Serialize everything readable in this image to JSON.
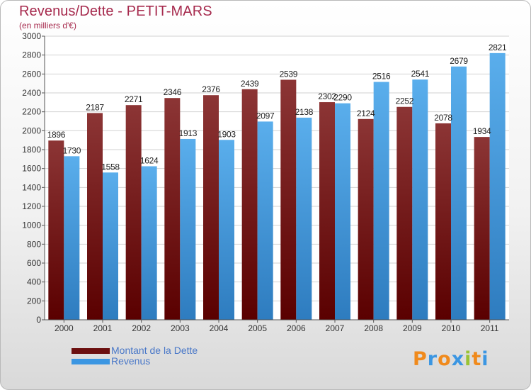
{
  "title": "Revenus/Dette - PETIT-MARS",
  "subtitle": "(en milliers d'€)",
  "colors": {
    "dette_top": "#8c3535",
    "dette_bottom": "#5a0000",
    "revenus_top": "#5aaeec",
    "revenus_bottom": "#2e7cbf",
    "swatch_dette": "#6b0f0f",
    "swatch_revenus": "#3b96e2",
    "title": "#a62a4d",
    "legend_text": "#4a78c8"
  },
  "legend": {
    "dette_label": "Montant de la Dette",
    "revenus_label": "Revenus"
  },
  "logo": {
    "text": "Proxiti",
    "letter_colors": [
      "#f08a1c",
      "#3b96e2",
      "#f08a1c",
      "#3b96e2",
      "#9ac334",
      "#f08a1c",
      "#3b96e2"
    ]
  },
  "chart_data": {
    "type": "bar",
    "categories": [
      "2000",
      "2001",
      "2002",
      "2003",
      "2004",
      "2005",
      "2006",
      "2007",
      "2008",
      "2009",
      "2010",
      "2011"
    ],
    "series": [
      {
        "name": "Montant de la Dette",
        "values": [
          1896,
          2187,
          2271,
          2346,
          2376,
          2439,
          2539,
          2302,
          2124,
          2252,
          2078,
          1934
        ]
      },
      {
        "name": "Revenus",
        "values": [
          1730,
          1558,
          1624,
          1913,
          1903,
          2097,
          2138,
          2290,
          2516,
          2541,
          2679,
          2821
        ]
      }
    ],
    "ylim": [
      0,
      3000
    ],
    "ytick_step": 200,
    "grid": true,
    "xlabel": "",
    "ylabel": ""
  }
}
